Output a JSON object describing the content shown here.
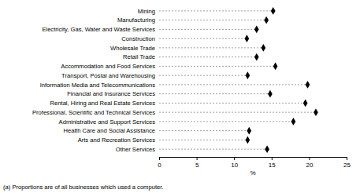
{
  "chart_data": {
    "type": "dot",
    "orientation": "horizontal",
    "categories": [
      "Mining",
      "Manufacturing",
      "Electricity, Gas, Water and Waste Services",
      "Construction",
      "Wholesale Trade",
      "Retail Trade",
      "Accommodation and Food Services",
      "Transport, Postal and Warehousing",
      "Information Media and Telecommunications",
      "Financial and Insurance Services",
      "Rental, Hiring and Real Estate Services",
      "Professional, Scientific and Technical Services",
      "Administrative and Support Services",
      "Health Care and Social Assistance",
      "Arts and Recreation Services",
      "Other Services"
    ],
    "values": [
      15.2,
      14.3,
      13.0,
      11.7,
      13.9,
      13.0,
      15.5,
      11.8,
      19.8,
      14.8,
      19.5,
      20.9,
      17.9,
      12.0,
      11.8,
      14.4
    ],
    "color": "#000000",
    "marker": "diamond",
    "line_style": "dashed",
    "x_label": "%",
    "xlim": [
      0,
      25
    ],
    "xticks": [
      0,
      5,
      10,
      15,
      20,
      25
    ],
    "footnote": "(a) Proportions are of all businesses which used a computer."
  }
}
